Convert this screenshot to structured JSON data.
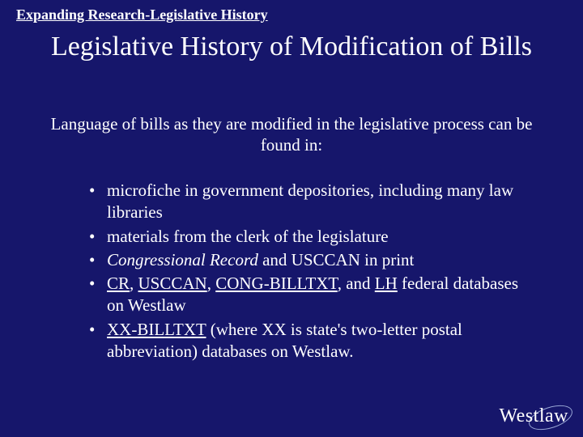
{
  "header_label": "Expanding Research-Legislative History",
  "title": "Legislative History of Modification of Bills",
  "subtitle": "Language of bills as they are modified in the legislative process can be found in:",
  "bullets": [
    {
      "segments": [
        {
          "text": "microfiche in government depositories, including many law libraries"
        }
      ]
    },
    {
      "segments": [
        {
          "text": "materials from the clerk of the legislature"
        }
      ]
    },
    {
      "segments": [
        {
          "text": "Congressional Record",
          "italic": true
        },
        {
          "text": "  and USCCAN in print"
        }
      ]
    },
    {
      "segments": [
        {
          "text": "CR",
          "underline": true
        },
        {
          "text": ", "
        },
        {
          "text": "USCCAN",
          "underline": true
        },
        {
          "text": ", "
        },
        {
          "text": "CONG-BILLTXT",
          "underline": true
        },
        {
          "text": ", and  "
        },
        {
          "text": "LH",
          "underline": true
        },
        {
          "text": " federal databases on Westlaw"
        }
      ]
    },
    {
      "segments": [
        {
          "text": " "
        },
        {
          "text": "XX-BILLTXT",
          "underline": true
        },
        {
          "text": " (where XX is state's two-letter postal abbreviation) databases on Westlaw."
        }
      ]
    }
  ],
  "logo_text": "Westlaw",
  "colors": {
    "background": "#16166b",
    "text": "#ffffff",
    "logo_ellipse": "#9aa8d6"
  },
  "fonts": {
    "family": "Times New Roman",
    "header_size_pt": 14,
    "title_size_pt": 26,
    "body_size_pt": 16
  }
}
